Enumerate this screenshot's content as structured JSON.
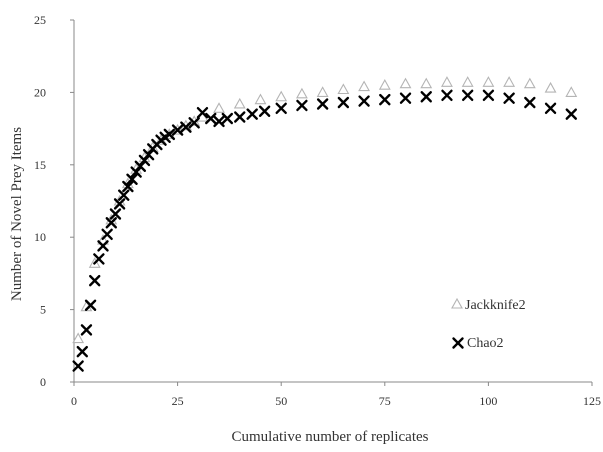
{
  "chart_data": {
    "type": "scatter",
    "title": "",
    "xlabel": "Cumulative number of replicates",
    "ylabel": "Number of Novel Prey Items",
    "xlim": [
      0,
      125
    ],
    "ylim": [
      0,
      25
    ],
    "x_ticks": [
      "0",
      "25",
      "50",
      "75",
      "100",
      "125"
    ],
    "y_ticks": [
      "0",
      "5",
      "10",
      "15",
      "20",
      "25"
    ],
    "grid": false,
    "legend_position": "right",
    "series": [
      {
        "name": "Jackknife2",
        "marker": "triangle",
        "color": "#b4b4b4",
        "points": [
          [
            1,
            3.0
          ],
          [
            3,
            5.2
          ],
          [
            5,
            8.2
          ],
          [
            7,
            9.8
          ],
          [
            9,
            11.2
          ],
          [
            11,
            12.5
          ],
          [
            13,
            13.7
          ],
          [
            15,
            14.7
          ],
          [
            17,
            15.5
          ],
          [
            19,
            16.2
          ],
          [
            21,
            16.7
          ],
          [
            23,
            17.1
          ],
          [
            25,
            17.4
          ],
          [
            27,
            17.7
          ],
          [
            29,
            18.0
          ],
          [
            31,
            18.3
          ],
          [
            35,
            18.9
          ],
          [
            40,
            19.2
          ],
          [
            45,
            19.5
          ],
          [
            50,
            19.7
          ],
          [
            55,
            19.9
          ],
          [
            60,
            20.0
          ],
          [
            65,
            20.2
          ],
          [
            70,
            20.4
          ],
          [
            75,
            20.5
          ],
          [
            80,
            20.6
          ],
          [
            85,
            20.6
          ],
          [
            90,
            20.7
          ],
          [
            95,
            20.7
          ],
          [
            100,
            20.7
          ],
          [
            105,
            20.7
          ],
          [
            110,
            20.6
          ],
          [
            115,
            20.3
          ],
          [
            120,
            20.0
          ]
        ]
      },
      {
        "name": "Chao2",
        "marker": "x",
        "color": "#000000",
        "points": [
          [
            1,
            1.1
          ],
          [
            2,
            2.1
          ],
          [
            3,
            3.6
          ],
          [
            4,
            5.3
          ],
          [
            5,
            7.0
          ],
          [
            6,
            8.5
          ],
          [
            7,
            9.4
          ],
          [
            8,
            10.2
          ],
          [
            9,
            11.0
          ],
          [
            10,
            11.6
          ],
          [
            11,
            12.3
          ],
          [
            12,
            12.9
          ],
          [
            13,
            13.5
          ],
          [
            14,
            14.0
          ],
          [
            15,
            14.5
          ],
          [
            16,
            14.9
          ],
          [
            17,
            15.3
          ],
          [
            18,
            15.7
          ],
          [
            19,
            16.1
          ],
          [
            20,
            16.4
          ],
          [
            21,
            16.7
          ],
          [
            22,
            16.9
          ],
          [
            23,
            17.1
          ],
          [
            25,
            17.4
          ],
          [
            27,
            17.6
          ],
          [
            29,
            17.9
          ],
          [
            31,
            18.6
          ],
          [
            33,
            18.2
          ],
          [
            35,
            18.0
          ],
          [
            37,
            18.2
          ],
          [
            40,
            18.3
          ],
          [
            43,
            18.5
          ],
          [
            46,
            18.7
          ],
          [
            50,
            18.9
          ],
          [
            55,
            19.1
          ],
          [
            60,
            19.2
          ],
          [
            65,
            19.3
          ],
          [
            70,
            19.4
          ],
          [
            75,
            19.5
          ],
          [
            80,
            19.6
          ],
          [
            85,
            19.7
          ],
          [
            90,
            19.8
          ],
          [
            95,
            19.8
          ],
          [
            100,
            19.8
          ],
          [
            105,
            19.6
          ],
          [
            110,
            19.3
          ],
          [
            115,
            18.9
          ],
          [
            120,
            18.5
          ]
        ]
      }
    ]
  }
}
